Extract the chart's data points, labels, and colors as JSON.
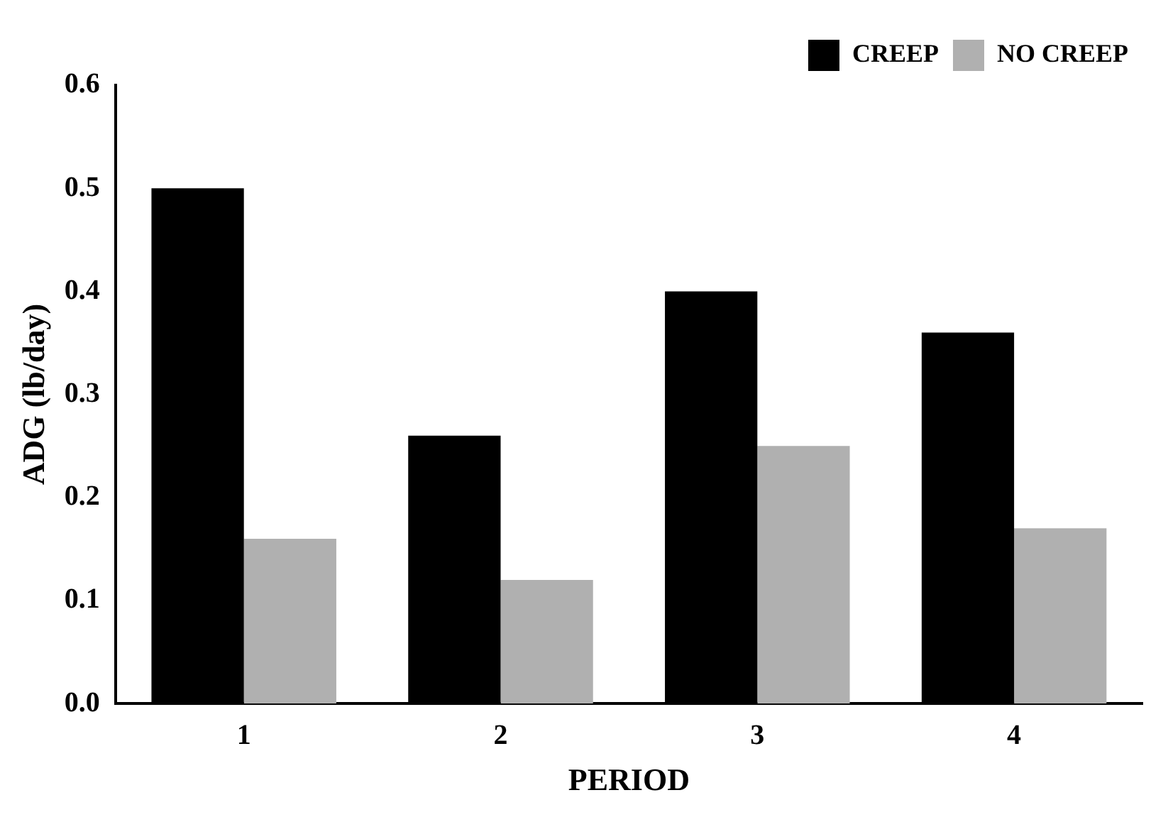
{
  "chart_data": {
    "type": "bar",
    "xlabel": "PERIOD",
    "ylabel": "ADG (lb/day)",
    "categories": [
      "1",
      "2",
      "3",
      "4"
    ],
    "series": [
      {
        "name": "CREEP",
        "color": "#000000",
        "values": [
          0.5,
          0.26,
          0.4,
          0.36
        ]
      },
      {
        "name": "NO CREEP",
        "color": "#b0b0b0",
        "values": [
          0.16,
          0.12,
          0.25,
          0.17
        ]
      }
    ],
    "ylim": [
      0,
      0.6
    ],
    "yticks": [
      "0.0",
      0.1,
      0.2,
      0.3,
      0.4,
      0.5,
      0.6
    ],
    "grid": false,
    "legend": "top right"
  }
}
